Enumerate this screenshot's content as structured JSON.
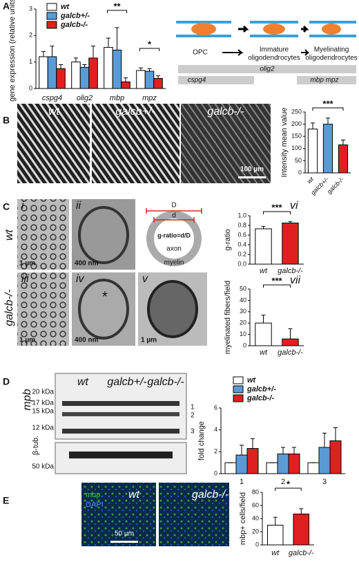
{
  "panels": [
    "A",
    "B",
    "C",
    "D",
    "E"
  ],
  "diagram": {
    "stages": [
      [
        "OPC"
      ],
      [
        "Immature",
        "oligodendrocytes"
      ],
      [
        "Myelinating",
        "oligodendrocytes"
      ]
    ],
    "markers": [
      "olig2",
      "cspg4",
      "mbp mpz"
    ]
  },
  "images_b": {
    "labels": [
      "wt",
      "galcb+/-",
      "galcb-/-"
    ],
    "scale_bar": "100 µm"
  },
  "images_c": {
    "row_labels": [
      "wt",
      "galcb-/-"
    ],
    "panel_labels": [
      "i",
      "ii",
      "iii",
      "iv",
      "v"
    ],
    "scale_bars": [
      "1 µm",
      "400 nm",
      "1 µm",
      "400 nm",
      "1 µm"
    ],
    "asterisk": "*",
    "schematic": {
      "outer": "D",
      "inner": "d",
      "formula": "g-ratio=d/D",
      "core": "axon",
      "ring": "myelin"
    }
  },
  "blot": {
    "target": "mpb",
    "loading": "β-tub.",
    "markers": [
      "20 kDa",
      "17 kDa",
      "15 kDa",
      "12 kDa"
    ],
    "loading_marker": "50 kDa",
    "lanes": [
      "wt",
      "galcb+/-",
      "galcb-/-"
    ],
    "bands": [
      "1",
      "2",
      "3"
    ]
  },
  "images_e": {
    "stains": [
      "mbp",
      "DAPI"
    ],
    "labels": [
      "wt",
      "galcb-/-"
    ],
    "scale_bar": "50 µm"
  },
  "chart_data": [
    {
      "type": "bar",
      "ylabel": "gene expression (relative units)",
      "categories": [
        "cspg4",
        "olig2",
        "mbp",
        "mpz"
      ],
      "legend": true,
      "series": [
        {
          "name": "wt",
          "color": "#ffffff",
          "values": [
            1.2,
            1.0,
            1.55,
            0.68
          ],
          "errors": [
            0.2,
            0.15,
            0.35,
            0.1
          ]
        },
        {
          "name": "galcb+/-",
          "color": "#5b9bd5",
          "values": [
            1.2,
            0.8,
            1.45,
            0.65
          ],
          "errors": [
            0.4,
            0.1,
            0.85,
            0.1
          ]
        },
        {
          "name": "galcb-/-",
          "color": "#e02020",
          "values": [
            0.75,
            1.15,
            0.25,
            0.38
          ],
          "errors": [
            0.15,
            0.45,
            0.15,
            0.1
          ]
        }
      ],
      "ylim": [
        0,
        3
      ],
      "yticks": [
        0,
        1,
        2,
        3
      ],
      "annotations": [
        {
          "text": "**",
          "category": "mbp"
        },
        {
          "text": "*",
          "category": "mpz"
        }
      ]
    },
    {
      "type": "bar",
      "ylabel": "Intensity mean value",
      "categories": [
        "wt",
        "galcb+/-",
        "galcb-/-"
      ],
      "values": [
        180,
        200,
        115
      ],
      "errors": [
        25,
        25,
        20
      ],
      "colors": [
        "#ffffff",
        "#5b9bd5",
        "#e02020"
      ],
      "ylim": [
        0,
        250
      ],
      "yticks": [
        0,
        50,
        100,
        150,
        200,
        250
      ],
      "annotations": [
        {
          "text": "***"
        }
      ]
    },
    {
      "type": "bar",
      "panel_label": "vi",
      "ylabel": "g-ratio",
      "categories": [
        "wt",
        "galcb-/-"
      ],
      "values": [
        0.73,
        0.85
      ],
      "errors": [
        0.05,
        0.03
      ],
      "colors": [
        "#ffffff",
        "#e02020"
      ],
      "ylim": [
        0,
        1
      ],
      "yticks": [
        {
          "value": 0,
          "label": "0.0"
        },
        0.2,
        0.4,
        0.6,
        0.8,
        {
          "value": 1,
          "label": "1.0"
        }
      ],
      "annotations": [
        {
          "text": "***"
        }
      ]
    },
    {
      "type": "bar",
      "panel_label": "vii",
      "ylabel": "myelinated fibers/field",
      "categories": [
        "wt",
        "galcb-/-"
      ],
      "values": [
        20,
        6
      ],
      "errors": [
        7,
        9
      ],
      "colors": [
        "#ffffff",
        "#e02020"
      ],
      "ylim": [
        0,
        50
      ],
      "yticks": [
        0,
        10,
        20,
        30,
        40,
        50
      ],
      "annotations": [
        {
          "text": "***"
        }
      ]
    },
    {
      "type": "bar",
      "ylabel": "fold change",
      "categories": [
        "1",
        "2",
        "3"
      ],
      "legend": true,
      "series": [
        {
          "name": "wt",
          "color": "#ffffff",
          "values": [
            1,
            1,
            1
          ],
          "errors": [
            0,
            0,
            0
          ]
        },
        {
          "name": "galcb+/-",
          "color": "#5b9bd5",
          "values": [
            1.7,
            1.8,
            2.4
          ],
          "errors": [
            0.9,
            0.6,
            1.3
          ]
        },
        {
          "name": "galcb-/-",
          "color": "#e02020",
          "values": [
            2.3,
            1.8,
            3.0
          ],
          "errors": [
            0.9,
            0.6,
            1.2
          ]
        }
      ],
      "ylim": [
        0,
        6
      ],
      "yticks": [
        0,
        2,
        4,
        6
      ]
    },
    {
      "type": "bar",
      "ylabel": "mbp+ cells/field",
      "categories": [
        "wt",
        "galcb-/-"
      ],
      "values": [
        30,
        47
      ],
      "errors": [
        12,
        8
      ],
      "colors": [
        "#ffffff",
        "#e02020"
      ],
      "ylim": [
        0,
        80
      ],
      "yticks": [
        0,
        20,
        40,
        60,
        80
      ],
      "annotations": [
        {
          "text": "*"
        }
      ]
    }
  ]
}
